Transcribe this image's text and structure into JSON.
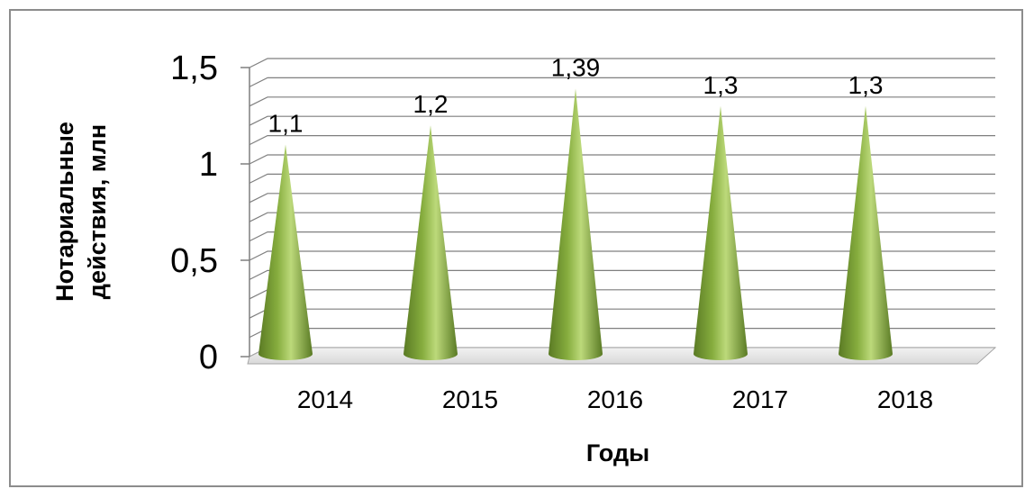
{
  "chart_data": {
    "type": "bar",
    "shape": "cone",
    "categories": [
      "2014",
      "2015",
      "2016",
      "2017",
      "2018"
    ],
    "values": [
      1.1,
      1.2,
      1.39,
      1.3,
      1.3
    ],
    "data_labels": [
      "1,1",
      "1,2",
      "1,39",
      "1,3",
      "1,3"
    ],
    "ylim": [
      0,
      1.5
    ],
    "yticks": [
      0,
      0.5,
      1,
      1.5
    ],
    "ytick_labels": [
      "0",
      "0,5",
      "1",
      "1,5"
    ],
    "xlabel": "Годы",
    "ylabel_lines": [
      "Нотариальные",
      "действия, млн"
    ],
    "grid": true,
    "legend": "none",
    "colors": {
      "bar_dark": "#5a7a24",
      "bar_light": "#bcd97a",
      "bar_mid": "#86ad3e",
      "grid": "#7f7f7f",
      "floor": "#e6e6e6"
    }
  }
}
